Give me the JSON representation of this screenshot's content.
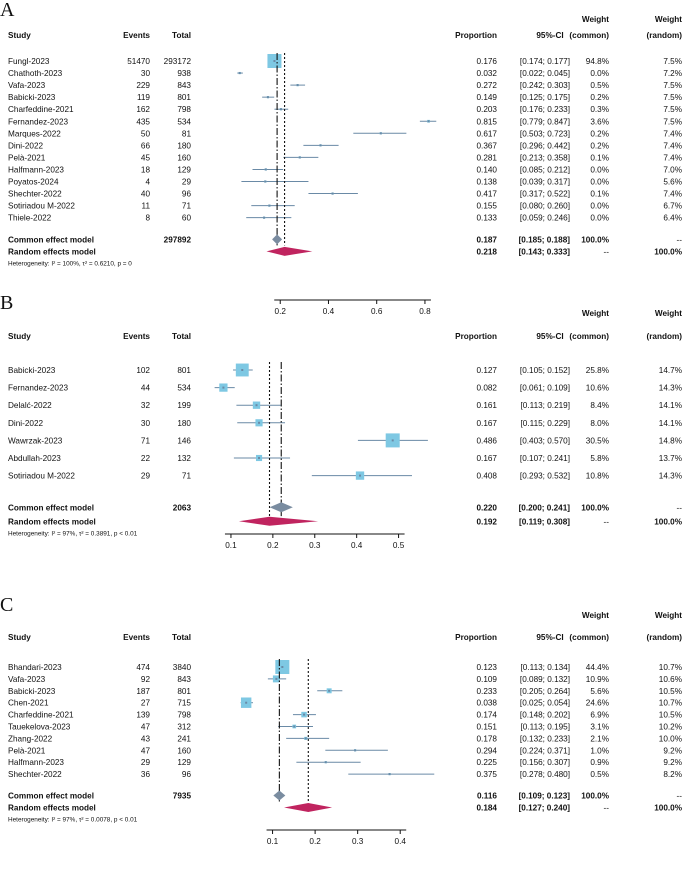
{
  "chart_data": [
    {
      "type": "forest",
      "panel": "A",
      "headers": {
        "study": "Study",
        "events": "Events",
        "total": "Total",
        "proportion": "Proportion",
        "ci": "95%-CI",
        "weight_common_1": "Weight",
        "weight_common_2": "(common)",
        "weight_random_1": "Weight",
        "weight_random_2": "(random)"
      },
      "xlim": [
        0.0,
        0.85
      ],
      "ticks": [
        0.2,
        0.4,
        0.6,
        0.8
      ],
      "tick_labels": [
        "0.2",
        "0.4",
        "0.6",
        "0.8"
      ],
      "studies": [
        {
          "study": "Fungl-2023",
          "events": "51470",
          "total": "293172",
          "p": 0.176,
          "lo": 0.174,
          "hi": 0.177,
          "prop": "0.176",
          "ci": "[0.174; 0.177]",
          "wc": "94.8%",
          "wr": "7.5%",
          "wcv": 94.8
        },
        {
          "study": "Chathoth-2023",
          "events": "30",
          "total": "938",
          "p": 0.032,
          "lo": 0.022,
          "hi": 0.045,
          "prop": "0.032",
          "ci": "[0.022; 0.045]",
          "wc": "0.0%",
          "wr": "7.2%",
          "wcv": 0.0
        },
        {
          "study": "Vafa-2023",
          "events": "229",
          "total": "843",
          "p": 0.272,
          "lo": 0.242,
          "hi": 0.303,
          "prop": "0.272",
          "ci": "[0.242; 0.303]",
          "wc": "0.5%",
          "wr": "7.5%",
          "wcv": 0.5
        },
        {
          "study": "Babicki-2023",
          "events": "119",
          "total": "801",
          "p": 0.149,
          "lo": 0.125,
          "hi": 0.175,
          "prop": "0.149",
          "ci": "[0.125; 0.175]",
          "wc": "0.2%",
          "wr": "7.5%",
          "wcv": 0.2
        },
        {
          "study": "Charfeddine-2021",
          "events": "162",
          "total": "798",
          "p": 0.203,
          "lo": 0.176,
          "hi": 0.233,
          "prop": "0.203",
          "ci": "[0.176; 0.233]",
          "wc": "0.3%",
          "wr": "7.5%",
          "wcv": 0.3
        },
        {
          "study": "Fernandez-2023",
          "events": "435",
          "total": "534",
          "p": 0.815,
          "lo": 0.779,
          "hi": 0.847,
          "prop": "0.815",
          "ci": "[0.779; 0.847]",
          "wc": "3.6%",
          "wr": "7.5%",
          "wcv": 3.6
        },
        {
          "study": "Marques-2022",
          "events": "50",
          "total": "81",
          "p": 0.617,
          "lo": 0.503,
          "hi": 0.723,
          "prop": "0.617",
          "ci": "[0.503; 0.723]",
          "wc": "0.2%",
          "wr": "7.4%",
          "wcv": 0.2
        },
        {
          "study": "Dini-2022",
          "events": "66",
          "total": "180",
          "p": 0.367,
          "lo": 0.296,
          "hi": 0.442,
          "prop": "0.367",
          "ci": "[0.296; 0.442]",
          "wc": "0.2%",
          "wr": "7.4%",
          "wcv": 0.2
        },
        {
          "study": "Pelà-2021",
          "events": "45",
          "total": "160",
          "p": 0.281,
          "lo": 0.213,
          "hi": 0.358,
          "prop": "0.281",
          "ci": "[0.213; 0.358]",
          "wc": "0.1%",
          "wr": "7.4%",
          "wcv": 0.1
        },
        {
          "study": "Halfmann-2023",
          "events": "18",
          "total": "129",
          "p": 0.14,
          "lo": 0.085,
          "hi": 0.212,
          "prop": "0.140",
          "ci": "[0.085; 0.212]",
          "wc": "0.0%",
          "wr": "7.0%",
          "wcv": 0.0
        },
        {
          "study": "Poyatos-2024",
          "events": "4",
          "total": "29",
          "p": 0.138,
          "lo": 0.039,
          "hi": 0.317,
          "prop": "0.138",
          "ci": "[0.039; 0.317]",
          "wc": "0.0%",
          "wr": "5.6%",
          "wcv": 0.0
        },
        {
          "study": "Shechter-2022",
          "events": "40",
          "total": "96",
          "p": 0.417,
          "lo": 0.317,
          "hi": 0.522,
          "prop": "0.417",
          "ci": "[0.317; 0.522]",
          "wc": "0.1%",
          "wr": "7.4%",
          "wcv": 0.1
        },
        {
          "study": "Sotiriadou M-2022",
          "events": "11",
          "total": "71",
          "p": 0.155,
          "lo": 0.08,
          "hi": 0.26,
          "prop": "0.155",
          "ci": "[0.080; 0.260]",
          "wc": "0.0%",
          "wr": "6.7%",
          "wcv": 0.0
        },
        {
          "study": "Thiele-2022",
          "events": "8",
          "total": "60",
          "p": 0.133,
          "lo": 0.059,
          "hi": 0.246,
          "prop": "0.133",
          "ci": "[0.059; 0.246]",
          "wc": "0.0%",
          "wr": "6.4%",
          "wcv": 0.0
        }
      ],
      "common": {
        "label": "Common effect model",
        "total": "297892",
        "p": 0.187,
        "lo": 0.185,
        "hi": 0.188,
        "prop": "0.187",
        "ci": "[0.185; 0.188]",
        "wc": "100.0%",
        "wr": "--"
      },
      "random": {
        "label": "Random effects model",
        "p": 0.218,
        "lo": 0.143,
        "hi": 0.333,
        "prop": "0.218",
        "ci": "[0.143; 0.333]",
        "wc": "--",
        "wr": "100.0%"
      },
      "heterogeneity": "Heterogeneity: I² = 100%, τ² = 0.6210, p = 0"
    },
    {
      "type": "forest",
      "panel": "B",
      "headers": {
        "study": "Study",
        "events": "Events",
        "total": "Total",
        "proportion": "Proportion",
        "ci": "95%-CI",
        "weight_common_1": "Weight",
        "weight_common_2": "(common)",
        "weight_random_1": "Weight",
        "weight_random_2": "(random)"
      },
      "xlim": [
        0.05,
        0.575
      ],
      "ticks": [
        0.1,
        0.2,
        0.3,
        0.4,
        0.5
      ],
      "tick_labels": [
        "0.1",
        "0.2",
        "0.3",
        "0.4",
        "0.5"
      ],
      "studies": [
        {
          "study": "Babicki-2023",
          "events": "102",
          "total": "801",
          "p": 0.127,
          "lo": 0.105,
          "hi": 0.152,
          "prop": "0.127",
          "ci": "[0.105; 0.152]",
          "wc": "25.8%",
          "wr": "14.7%",
          "wcv": 25.8
        },
        {
          "study": "Fernandez-2023",
          "events": "44",
          "total": "534",
          "p": 0.082,
          "lo": 0.061,
          "hi": 0.109,
          "prop": "0.082",
          "ci": "[0.061; 0.109]",
          "wc": "10.6%",
          "wr": "14.3%",
          "wcv": 10.6
        },
        {
          "study": "Delalć-2022",
          "events": "32",
          "total": "199",
          "p": 0.161,
          "lo": 0.113,
          "hi": 0.219,
          "prop": "0.161",
          "ci": "[0.113; 0.219]",
          "wc": "8.4%",
          "wr": "14.1%",
          "wcv": 8.4
        },
        {
          "study": "Dini-2022",
          "events": "30",
          "total": "180",
          "p": 0.167,
          "lo": 0.115,
          "hi": 0.229,
          "prop": "0.167",
          "ci": "[0.115; 0.229]",
          "wc": "8.0%",
          "wr": "14.1%",
          "wcv": 8.0
        },
        {
          "study": "Wawrzak-2023",
          "events": "71",
          "total": "146",
          "p": 0.486,
          "lo": 0.403,
          "hi": 0.57,
          "prop": "0.486",
          "ci": "[0.403; 0.570]",
          "wc": "30.5%",
          "wr": "14.8%",
          "wcv": 30.5
        },
        {
          "study": "Abdullah-2023",
          "events": "22",
          "total": "132",
          "p": 0.167,
          "lo": 0.107,
          "hi": 0.241,
          "prop": "0.167",
          "ci": "[0.107; 0.241]",
          "wc": "5.8%",
          "wr": "13.7%",
          "wcv": 5.8
        },
        {
          "study": "Sotiriadou M-2022",
          "events": "29",
          "total": "71",
          "p": 0.408,
          "lo": 0.293,
          "hi": 0.532,
          "prop": "0.408",
          "ci": "[0.293; 0.532]",
          "wc": "10.8%",
          "wr": "14.3%",
          "wcv": 10.8
        }
      ],
      "common": {
        "label": "Common effect model",
        "total": "2063",
        "p": 0.22,
        "lo": 0.2,
        "hi": 0.241,
        "prop": "0.220",
        "ci": "[0.200; 0.241]",
        "wc": "100.0%",
        "wr": "--"
      },
      "random": {
        "label": "Random effects model",
        "p": 0.192,
        "lo": 0.119,
        "hi": 0.308,
        "prop": "0.192",
        "ci": "[0.119; 0.308]",
        "wc": "--",
        "wr": "100.0%"
      },
      "heterogeneity": "Heterogeneity: I² = 97%, τ² = 0.3891, p < 0.01"
    },
    {
      "type": "forest",
      "panel": "C",
      "headers": {
        "study": "Study",
        "events": "Events",
        "total": "Total",
        "proportion": "Proportion",
        "ci": "95%-CI",
        "weight_common_1": "Weight",
        "weight_common_2": "(common)",
        "weight_random_1": "Weight",
        "weight_random_2": "(random)"
      },
      "xlim": [
        0.0,
        0.47
      ],
      "ticks": [
        0.1,
        0.2,
        0.3,
        0.4
      ],
      "tick_labels": [
        "0.1",
        "0.2",
        "0.3",
        "0.4"
      ],
      "studies": [
        {
          "study": "Bhandari-2023",
          "events": "474",
          "total": "3840",
          "p": 0.123,
          "lo": 0.113,
          "hi": 0.134,
          "prop": "0.123",
          "ci": "[0.113; 0.134]",
          "wc": "44.4%",
          "wr": "10.7%",
          "wcv": 44.4
        },
        {
          "study": "Vafa-2023",
          "events": "92",
          "total": "843",
          "p": 0.109,
          "lo": 0.089,
          "hi": 0.132,
          "prop": "0.109",
          "ci": "[0.089; 0.132]",
          "wc": "10.9%",
          "wr": "10.6%",
          "wcv": 10.9
        },
        {
          "study": "Babicki-2023",
          "events": "187",
          "total": "801",
          "p": 0.233,
          "lo": 0.205,
          "hi": 0.264,
          "prop": "0.233",
          "ci": "[0.205; 0.264]",
          "wc": "5.6%",
          "wr": "10.5%",
          "wcv": 5.6
        },
        {
          "study": "Chen-2021",
          "events": "27",
          "total": "715",
          "p": 0.038,
          "lo": 0.025,
          "hi": 0.054,
          "prop": "0.038",
          "ci": "[0.025; 0.054]",
          "wc": "24.6%",
          "wr": "10.7%",
          "wcv": 24.6
        },
        {
          "study": "Charfeddine-2021",
          "events": "139",
          "total": "798",
          "p": 0.174,
          "lo": 0.148,
          "hi": 0.202,
          "prop": "0.174",
          "ci": "[0.148; 0.202]",
          "wc": "6.9%",
          "wr": "10.5%",
          "wcv": 6.9
        },
        {
          "study": "Tauekelova-2023",
          "events": "47",
          "total": "312",
          "p": 0.151,
          "lo": 0.113,
          "hi": 0.195,
          "prop": "0.151",
          "ci": "[0.113; 0.195]",
          "wc": "3.1%",
          "wr": "10.2%",
          "wcv": 3.1
        },
        {
          "study": "Zhang-2022",
          "events": "43",
          "total": "241",
          "p": 0.178,
          "lo": 0.132,
          "hi": 0.233,
          "prop": "0.178",
          "ci": "[0.132; 0.233]",
          "wc": "2.1%",
          "wr": "10.0%",
          "wcv": 2.1
        },
        {
          "study": "Pelà-2021",
          "events": "47",
          "total": "160",
          "p": 0.294,
          "lo": 0.224,
          "hi": 0.371,
          "prop": "0.294",
          "ci": "[0.224; 0.371]",
          "wc": "1.0%",
          "wr": "9.2%",
          "wcv": 1.0
        },
        {
          "study": "Halfmann-2023",
          "events": "29",
          "total": "129",
          "p": 0.225,
          "lo": 0.156,
          "hi": 0.307,
          "prop": "0.225",
          "ci": "[0.156; 0.307]",
          "wc": "0.9%",
          "wr": "9.2%",
          "wcv": 0.9
        },
        {
          "study": "Shechter-2022",
          "events": "36",
          "total": "96",
          "p": 0.375,
          "lo": 0.278,
          "hi": 0.48,
          "prop": "0.375",
          "ci": "[0.278; 0.480]",
          "wc": "0.5%",
          "wr": "8.2%",
          "wcv": 0.5
        }
      ],
      "common": {
        "label": "Common effect model",
        "total": "7935",
        "p": 0.116,
        "lo": 0.109,
        "hi": 0.123,
        "prop": "0.116",
        "ci": "[0.109; 0.123]",
        "wc": "100.0%",
        "wr": "--"
      },
      "random": {
        "label": "Random effects model",
        "p": 0.184,
        "lo": 0.127,
        "hi": 0.24,
        "prop": "0.184",
        "ci": "[0.127; 0.240]",
        "wc": "--",
        "wr": "100.0%"
      },
      "heterogeneity": "Heterogeneity: I² = 97%, τ² = 0.0078, p < 0.01"
    }
  ],
  "colors": {
    "box": "#7ec8e3",
    "ci_line": "#6a8aa6",
    "random_diamond": "#c0245f",
    "common_diamond": "#7a8ca0",
    "axis": "#111111"
  }
}
